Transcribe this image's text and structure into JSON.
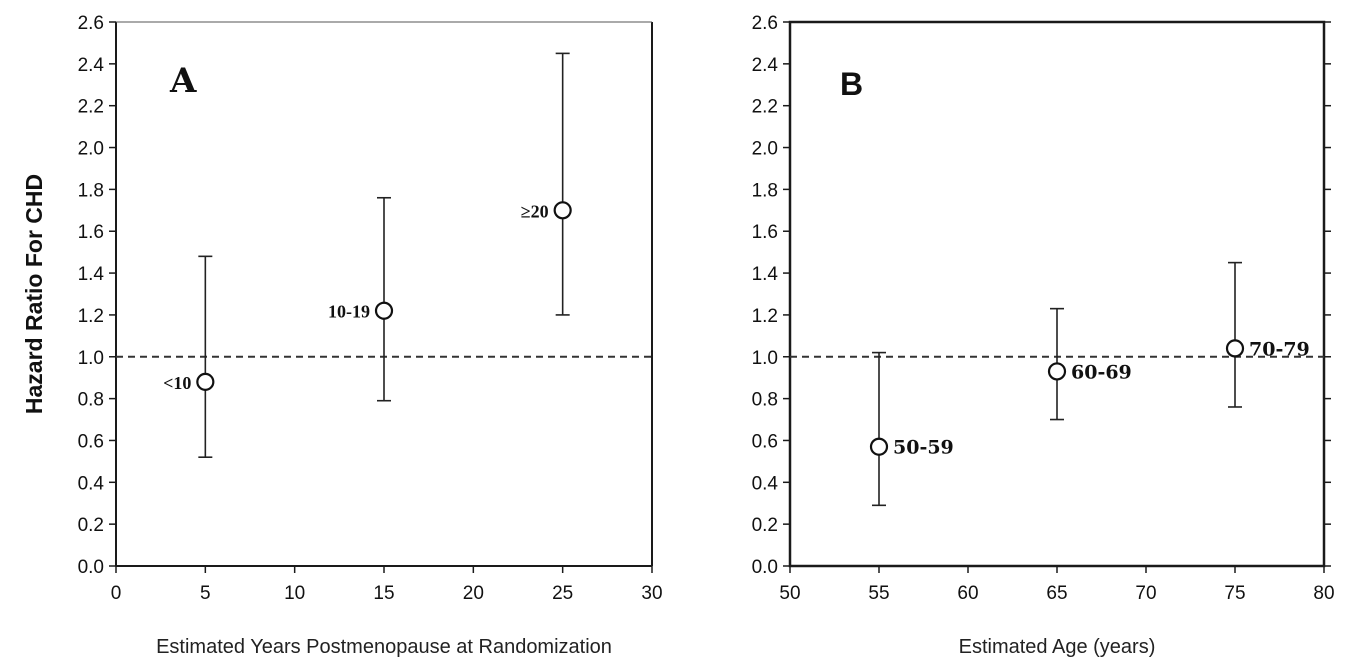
{
  "chart_data": [
    {
      "type": "scatter",
      "panel_label": "A",
      "ylabel": "Hazard Ratio For CHD",
      "xlabel": "Estimated Years Postmenopause at Randomization",
      "xlim": [
        0,
        30
      ],
      "ylim": [
        0,
        2.6
      ],
      "x_ticks": [
        "0",
        "5",
        "10",
        "15",
        "20",
        "25",
        "30"
      ],
      "y_ticks": [
        "0.0",
        "0.2",
        "0.4",
        "0.6",
        "0.8",
        "1.0",
        "1.2",
        "1.4",
        "1.6",
        "1.8",
        "2.0",
        "2.2",
        "2.4",
        "2.6"
      ],
      "reference_line": 1.0,
      "grid": false,
      "points": [
        {
          "label": "<10",
          "x": 5,
          "y": 0.88,
          "lower": 0.52,
          "upper": 1.48
        },
        {
          "label": "10-19",
          "x": 15,
          "y": 1.22,
          "lower": 0.79,
          "upper": 1.76
        },
        {
          "label": "≥20",
          "x": 25,
          "y": 1.7,
          "lower": 1.2,
          "upper": 2.45
        }
      ]
    },
    {
      "type": "scatter",
      "panel_label": "B",
      "ylabel": "",
      "xlabel": "Estimated Age (years)",
      "xlim": [
        50,
        80
      ],
      "ylim": [
        0,
        2.6
      ],
      "x_ticks": [
        "50",
        "55",
        "60",
        "65",
        "70",
        "75",
        "80"
      ],
      "y_ticks": [
        "0.0",
        "0.2",
        "0.4",
        "0.6",
        "0.8",
        "1.0",
        "1.2",
        "1.4",
        "1.6",
        "1.8",
        "2.0",
        "2.2",
        "2.4",
        "2.6"
      ],
      "reference_line": 1.0,
      "grid": false,
      "points": [
        {
          "label": "50-59",
          "x": 55,
          "y": 0.57,
          "lower": 0.29,
          "upper": 1.02
        },
        {
          "label": "60-69",
          "x": 65,
          "y": 0.93,
          "lower": 0.7,
          "upper": 1.23
        },
        {
          "label": "70-79",
          "x": 75,
          "y": 1.04,
          "lower": 0.76,
          "upper": 1.45
        }
      ]
    }
  ]
}
